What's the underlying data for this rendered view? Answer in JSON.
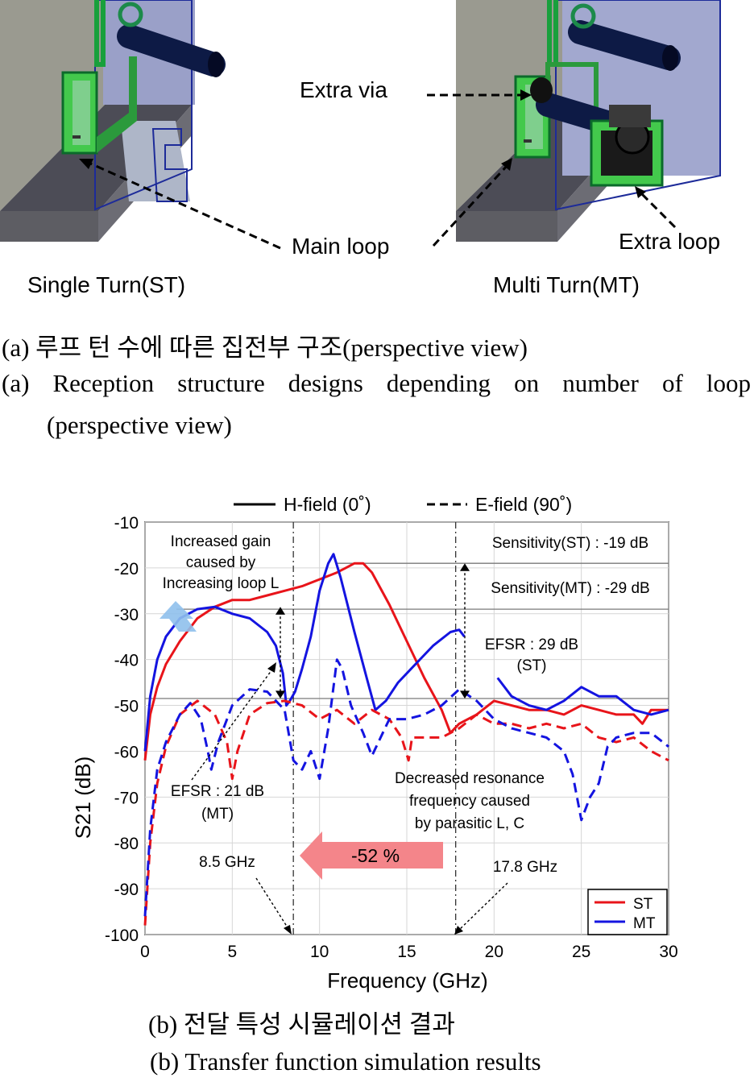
{
  "figure_a": {
    "labels": {
      "extra_via": "Extra via",
      "main_loop": "Main loop",
      "extra_loop": "Extra loop",
      "single_turn": "Single Turn(ST)",
      "multi_turn": "Multi Turn(MT)"
    },
    "caption_kr": "(a) 루프 턴 수에 따른 집전부 구조(perspective view)",
    "caption_en_line1": "(a) Reception structure designs depending on number of loop",
    "caption_en_line2": "(perspective view)"
  },
  "chart_data": {
    "type": "line",
    "xlabel": "Frequency (GHz)",
    "ylabel": "S21 (dB)",
    "xlim": [
      0,
      30
    ],
    "ylim": [
      -100,
      -10
    ],
    "xticks": [
      0,
      5,
      10,
      15,
      20,
      25,
      30
    ],
    "yticks": [
      -10,
      -20,
      -30,
      -40,
      -50,
      -60,
      -70,
      -80,
      -90,
      -100
    ],
    "top_legend": {
      "h_field": "H-field (0˚)",
      "e_field": "E-field (90˚)"
    },
    "series_legend": [
      {
        "name": "ST",
        "color": "#e8141a"
      },
      {
        "name": "MT",
        "color": "#1414e0"
      }
    ],
    "series": [
      {
        "name": "ST",
        "field": "H-field (0˚)",
        "color": "#e8141a",
        "dash": false,
        "points": [
          [
            0,
            -62
          ],
          [
            0.3,
            -52
          ],
          [
            0.7,
            -46
          ],
          [
            1.2,
            -41
          ],
          [
            2,
            -36
          ],
          [
            3,
            -31
          ],
          [
            4,
            -28.5
          ],
          [
            5,
            -27
          ],
          [
            6,
            -27
          ],
          [
            7,
            -26
          ],
          [
            8,
            -25
          ],
          [
            9,
            -24
          ],
          [
            10,
            -22.5
          ],
          [
            11,
            -21
          ],
          [
            11.5,
            -20
          ],
          [
            12,
            -19
          ],
          [
            12.5,
            -19
          ],
          [
            13,
            -21
          ],
          [
            14,
            -28
          ],
          [
            15,
            -36
          ],
          [
            16,
            -44
          ],
          [
            17,
            -51
          ],
          [
            17.5,
            -56
          ],
          [
            18,
            -54
          ],
          [
            19,
            -52
          ],
          [
            20,
            -49
          ],
          [
            21,
            -50
          ],
          [
            22,
            -51
          ],
          [
            23,
            -51
          ],
          [
            24,
            -52
          ],
          [
            25,
            -50
          ],
          [
            26,
            -51
          ],
          [
            27,
            -52
          ],
          [
            28,
            -52
          ],
          [
            28.5,
            -54
          ],
          [
            29,
            -51
          ],
          [
            30,
            -51
          ]
        ]
      },
      {
        "name": "MT",
        "field": "H-field (0˚)",
        "color": "#1414e0",
        "dash": false,
        "points": [
          [
            0,
            -60
          ],
          [
            0.3,
            -48
          ],
          [
            0.7,
            -40
          ],
          [
            1.2,
            -35
          ],
          [
            2,
            -31
          ],
          [
            3,
            -29
          ],
          [
            4,
            -28.5
          ],
          [
            5,
            -30
          ],
          [
            6,
            -31
          ],
          [
            7,
            -34
          ],
          [
            7.5,
            -37
          ],
          [
            7.9,
            -43
          ],
          [
            8.1,
            -50
          ],
          [
            8.3,
            -49
          ],
          [
            8.6,
            -47
          ],
          [
            9,
            -42
          ],
          [
            9.5,
            -35
          ],
          [
            10,
            -25
          ],
          [
            10.5,
            -19
          ],
          [
            10.8,
            -17
          ],
          [
            11.2,
            -22
          ],
          [
            12,
            -34
          ],
          [
            12.7,
            -44
          ],
          [
            13.2,
            -51
          ],
          [
            13.8,
            -49
          ],
          [
            14.5,
            -45
          ],
          [
            15.5,
            -41
          ],
          [
            16.5,
            -37
          ],
          [
            17.5,
            -34
          ],
          [
            18,
            -33.5
          ],
          [
            18.3,
            -35
          ]
        ]
      },
      {
        "name": "MT",
        "field": "H-field (0˚)",
        "color": "#1414e0",
        "dash": false,
        "points": [
          [
            20.2,
            -44
          ],
          [
            21,
            -48
          ],
          [
            22,
            -50
          ],
          [
            23,
            -51
          ],
          [
            24,
            -49
          ],
          [
            25,
            -46
          ],
          [
            26,
            -48
          ],
          [
            27,
            -48
          ],
          [
            28,
            -51
          ],
          [
            29,
            -52
          ],
          [
            30,
            -51
          ]
        ]
      },
      {
        "name": "ST",
        "field": "E-field (90˚)",
        "color": "#e8141a",
        "dash": true,
        "points": [
          [
            0,
            -98
          ],
          [
            0.3,
            -80
          ],
          [
            0.7,
            -67
          ],
          [
            1.2,
            -59
          ],
          [
            2,
            -52
          ],
          [
            3,
            -49
          ],
          [
            4,
            -52
          ],
          [
            4.7,
            -58
          ],
          [
            5,
            -66
          ],
          [
            5.3,
            -60
          ],
          [
            6,
            -52
          ],
          [
            7,
            -49.5
          ],
          [
            8,
            -49
          ],
          [
            9,
            -50
          ],
          [
            10,
            -53
          ],
          [
            11,
            -51
          ],
          [
            12,
            -54
          ],
          [
            13,
            -51
          ],
          [
            14,
            -53
          ],
          [
            14.7,
            -57
          ],
          [
            15.1,
            -62
          ],
          [
            15.3,
            -57
          ],
          [
            16,
            -57
          ],
          [
            17,
            -57
          ],
          [
            18,
            -55
          ],
          [
            19,
            -52
          ],
          [
            20,
            -54
          ],
          [
            21,
            -54
          ],
          [
            22,
            -55
          ],
          [
            23,
            -54
          ],
          [
            24,
            -55
          ],
          [
            25,
            -54
          ],
          [
            26,
            -57
          ],
          [
            27,
            -58
          ],
          [
            28,
            -57
          ],
          [
            29,
            -60
          ],
          [
            30,
            -62
          ]
        ]
      },
      {
        "name": "MT",
        "field": "E-field (90˚)",
        "color": "#1414e0",
        "dash": true,
        "points": [
          [
            0,
            -96
          ],
          [
            0.3,
            -77
          ],
          [
            0.7,
            -64
          ],
          [
            1.2,
            -58
          ],
          [
            2,
            -52
          ],
          [
            2.6,
            -49.5
          ],
          [
            3.2,
            -53
          ],
          [
            3.6,
            -60
          ],
          [
            3.8,
            -64
          ],
          [
            4.2,
            -58
          ],
          [
            5,
            -50
          ],
          [
            6,
            -46.5
          ],
          [
            7,
            -47
          ],
          [
            8,
            -51
          ],
          [
            8.5,
            -62
          ],
          [
            9,
            -64
          ],
          [
            9.5,
            -60
          ],
          [
            10,
            -66
          ],
          [
            10.5,
            -55
          ],
          [
            11,
            -40
          ],
          [
            11.3,
            -42
          ],
          [
            11.8,
            -50
          ],
          [
            12.5,
            -56
          ],
          [
            13,
            -61
          ],
          [
            13.5,
            -57
          ],
          [
            14,
            -53
          ],
          [
            15,
            -53
          ],
          [
            16,
            -52
          ],
          [
            17,
            -50
          ],
          [
            18,
            -46.5
          ],
          [
            19,
            -49
          ],
          [
            20,
            -53
          ],
          [
            21,
            -55
          ],
          [
            22,
            -56
          ],
          [
            23,
            -57
          ],
          [
            24,
            -60
          ],
          [
            24.5,
            -65
          ],
          [
            25,
            -75
          ],
          [
            25.5,
            -70
          ],
          [
            26,
            -67
          ],
          [
            26.5,
            -59
          ],
          [
            27,
            -57
          ],
          [
            28,
            -56
          ],
          [
            29,
            -56
          ],
          [
            30,
            -59
          ]
        ]
      }
    ],
    "annotations": {
      "increased_gain": [
        "Increased gain",
        "caused by",
        "Increasing loop L"
      ],
      "sensitivity_st": "Sensitivity(ST) : -19 dB",
      "sensitivity_mt": "Sensitivity(MT) : -29 dB",
      "efsr_st": [
        "EFSR : 29 dB",
        "(ST)"
      ],
      "efsr_mt": [
        "EFSR : 21 dB",
        "(MT)"
      ],
      "decreased_resonance": [
        "Decreased resonance",
        "frequency caused",
        "by parasitic L, C"
      ],
      "freq_mt": "8.5 GHz",
      "freq_st": "17.8 GHz",
      "shift_percent": "-52 %"
    },
    "vertical_markers_ghz": [
      8.5,
      17.8
    ],
    "horizontal_reference_db": [
      -19,
      -29,
      -48.5
    ],
    "arrow_colors": {
      "shift": "#f4858a",
      "gain": "#8fc0ec"
    }
  },
  "figure_b": {
    "caption_kr": "(b) 전달 특성 시뮬레이션 결과",
    "caption_en": "(b) Transfer function simulation results"
  }
}
